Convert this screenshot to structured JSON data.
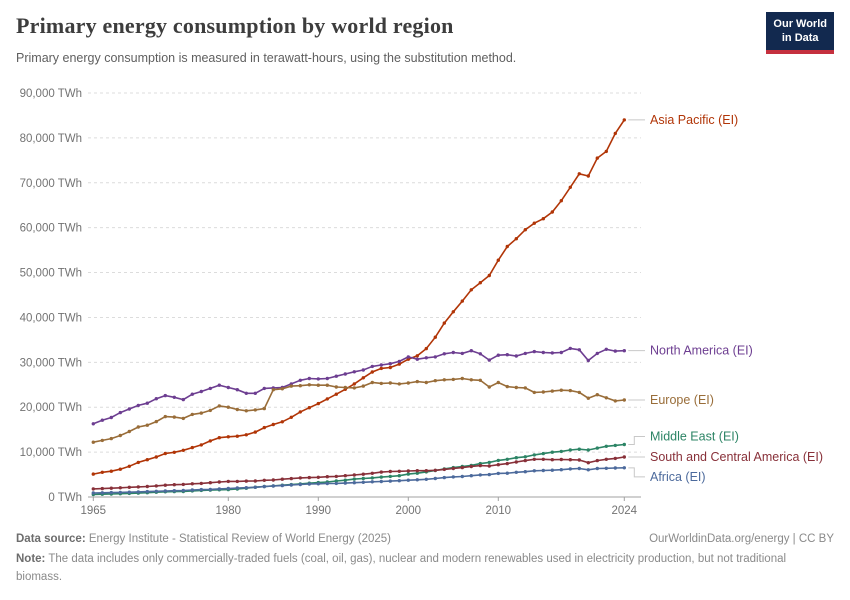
{
  "header": {
    "title": "Primary energy consumption by world region",
    "subtitle": "Primary energy consumption is measured in terawatt-hours, using the substitution method.",
    "logo": {
      "line1": "Our World",
      "line2": "in Data",
      "bg_color": "#12294F",
      "bar_color": "#C5303E"
    }
  },
  "chart_data": {
    "type": "line",
    "title": "Primary energy consumption by world region",
    "xlabel": "",
    "ylabel": "",
    "y_tick_suffix": " TWh",
    "ylim": [
      0,
      90000
    ],
    "x_ticks": [
      1965,
      1980,
      1990,
      2000,
      2010,
      2024
    ],
    "y_ticks": [
      0,
      10000,
      20000,
      30000,
      40000,
      50000,
      60000,
      70000,
      80000,
      90000
    ],
    "grid": "horizontal-dashed",
    "legend_position": "right-end-labels",
    "x": [
      1965,
      1966,
      1967,
      1968,
      1969,
      1970,
      1971,
      1972,
      1973,
      1974,
      1975,
      1976,
      1977,
      1978,
      1979,
      1980,
      1981,
      1982,
      1983,
      1984,
      1985,
      1986,
      1987,
      1988,
      1989,
      1990,
      1991,
      1992,
      1993,
      1994,
      1995,
      1996,
      1997,
      1998,
      1999,
      2000,
      2001,
      2002,
      2003,
      2004,
      2005,
      2006,
      2007,
      2008,
      2009,
      2010,
      2011,
      2012,
      2013,
      2014,
      2015,
      2016,
      2017,
      2018,
      2019,
      2020,
      2021,
      2022,
      2023,
      2024
    ],
    "series": [
      {
        "name": "Asia Pacific (EI)",
        "color": "#B13507",
        "label_dy": 0,
        "values": [
          5100,
          5500,
          5750,
          6200,
          6850,
          7700,
          8300,
          8900,
          9700,
          9950,
          10400,
          11000,
          11600,
          12500,
          13200,
          13400,
          13550,
          13850,
          14450,
          15450,
          16150,
          16750,
          17750,
          18950,
          19900,
          20800,
          21850,
          22900,
          24000,
          25200,
          26550,
          27850,
          28650,
          28850,
          29600,
          30700,
          31450,
          33050,
          35600,
          38750,
          41250,
          43650,
          46150,
          47750,
          49350,
          52750,
          55800,
          57550,
          59550,
          61000,
          62000,
          63500,
          66000,
          69000,
          72000,
          71500,
          75500,
          77000,
          81000,
          84000
        ]
      },
      {
        "name": "North America (EI)",
        "color": "#6D3E91",
        "label_dy": 0,
        "values": [
          16300,
          17100,
          17700,
          18800,
          19600,
          20400,
          20900,
          21900,
          22600,
          22200,
          21700,
          22900,
          23500,
          24200,
          24900,
          24400,
          23900,
          23100,
          23100,
          24200,
          24300,
          24400,
          25200,
          26000,
          26400,
          26300,
          26400,
          26900,
          27400,
          27900,
          28300,
          29100,
          29400,
          29700,
          30200,
          31200,
          30700,
          31000,
          31200,
          31900,
          32200,
          32000,
          32600,
          31900,
          30500,
          31600,
          31700,
          31400,
          32000,
          32400,
          32200,
          32100,
          32200,
          33100,
          32800,
          30400,
          32000,
          32900,
          32500,
          32600
        ]
      },
      {
        "name": "Europe (EI)",
        "color": "#996D39",
        "label_dy": 0,
        "values": [
          12200,
          12600,
          13000,
          13700,
          14600,
          15600,
          16000,
          16800,
          17900,
          17800,
          17500,
          18400,
          18700,
          19300,
          20300,
          20000,
          19500,
          19200,
          19400,
          19700,
          23900,
          24100,
          24700,
          24800,
          25000,
          24900,
          24900,
          24500,
          24400,
          24300,
          24700,
          25500,
          25300,
          25400,
          25200,
          25400,
          25700,
          25500,
          25900,
          26100,
          26200,
          26400,
          26100,
          26000,
          24500,
          25500,
          24600,
          24400,
          24300,
          23300,
          23400,
          23600,
          23800,
          23700,
          23300,
          22000,
          22800,
          22100,
          21400,
          21600
        ]
      },
      {
        "name": "Middle East (EI)",
        "color": "#2C8465",
        "label_dy": -8,
        "values": [
          560,
          620,
          660,
          730,
          800,
          870,
          960,
          1060,
          1160,
          1210,
          1230,
          1370,
          1470,
          1540,
          1600,
          1640,
          1780,
          1950,
          2180,
          2350,
          2480,
          2620,
          2760,
          2920,
          3080,
          3200,
          3350,
          3560,
          3750,
          3980,
          4130,
          4260,
          4430,
          4600,
          4740,
          5100,
          5300,
          5600,
          5900,
          6250,
          6550,
          6800,
          7050,
          7450,
          7700,
          8150,
          8390,
          8750,
          8960,
          9370,
          9660,
          9980,
          10150,
          10480,
          10650,
          10480,
          10900,
          11300,
          11500,
          11700
        ]
      },
      {
        "name": "South and Central America (EI)",
        "color": "#883039",
        "label_dy": 0,
        "values": [
          1800,
          1880,
          1960,
          2060,
          2150,
          2260,
          2350,
          2470,
          2620,
          2750,
          2810,
          2940,
          3040,
          3190,
          3350,
          3470,
          3480,
          3540,
          3560,
          3710,
          3790,
          3970,
          4110,
          4250,
          4330,
          4390,
          4520,
          4600,
          4750,
          4910,
          5090,
          5290,
          5550,
          5690,
          5730,
          5800,
          5850,
          5870,
          5950,
          6150,
          6350,
          6550,
          6800,
          7000,
          6900,
          7200,
          7450,
          7800,
          8100,
          8400,
          8400,
          8300,
          8350,
          8300,
          8250,
          7650,
          8100,
          8400,
          8600,
          8900
        ]
      },
      {
        "name": "Africa (EI)",
        "color": "#4C6A9C",
        "label_dy": 9,
        "values": [
          900,
          940,
          980,
          1030,
          1080,
          1140,
          1200,
          1260,
          1330,
          1400,
          1450,
          1550,
          1640,
          1700,
          1810,
          1900,
          2000,
          2070,
          2160,
          2320,
          2450,
          2550,
          2670,
          2790,
          2890,
          2940,
          3000,
          3040,
          3100,
          3180,
          3270,
          3380,
          3460,
          3550,
          3640,
          3750,
          3840,
          3950,
          4120,
          4330,
          4470,
          4570,
          4750,
          4930,
          5000,
          5250,
          5300,
          5500,
          5640,
          5840,
          5900,
          5970,
          6090,
          6250,
          6350,
          6050,
          6350,
          6400,
          6450,
          6500
        ]
      }
    ]
  },
  "footer": {
    "data_source_label": "Data source:",
    "data_source": "Energy Institute - Statistical Review of World Energy (2025)",
    "link": "OurWorldinData.org/energy | CC BY",
    "note_label": "Note:",
    "note": "The data includes only commercially-traded fuels (coal, oil, gas), nuclear and modern renewables used in electricity production, but not traditional biomass."
  }
}
